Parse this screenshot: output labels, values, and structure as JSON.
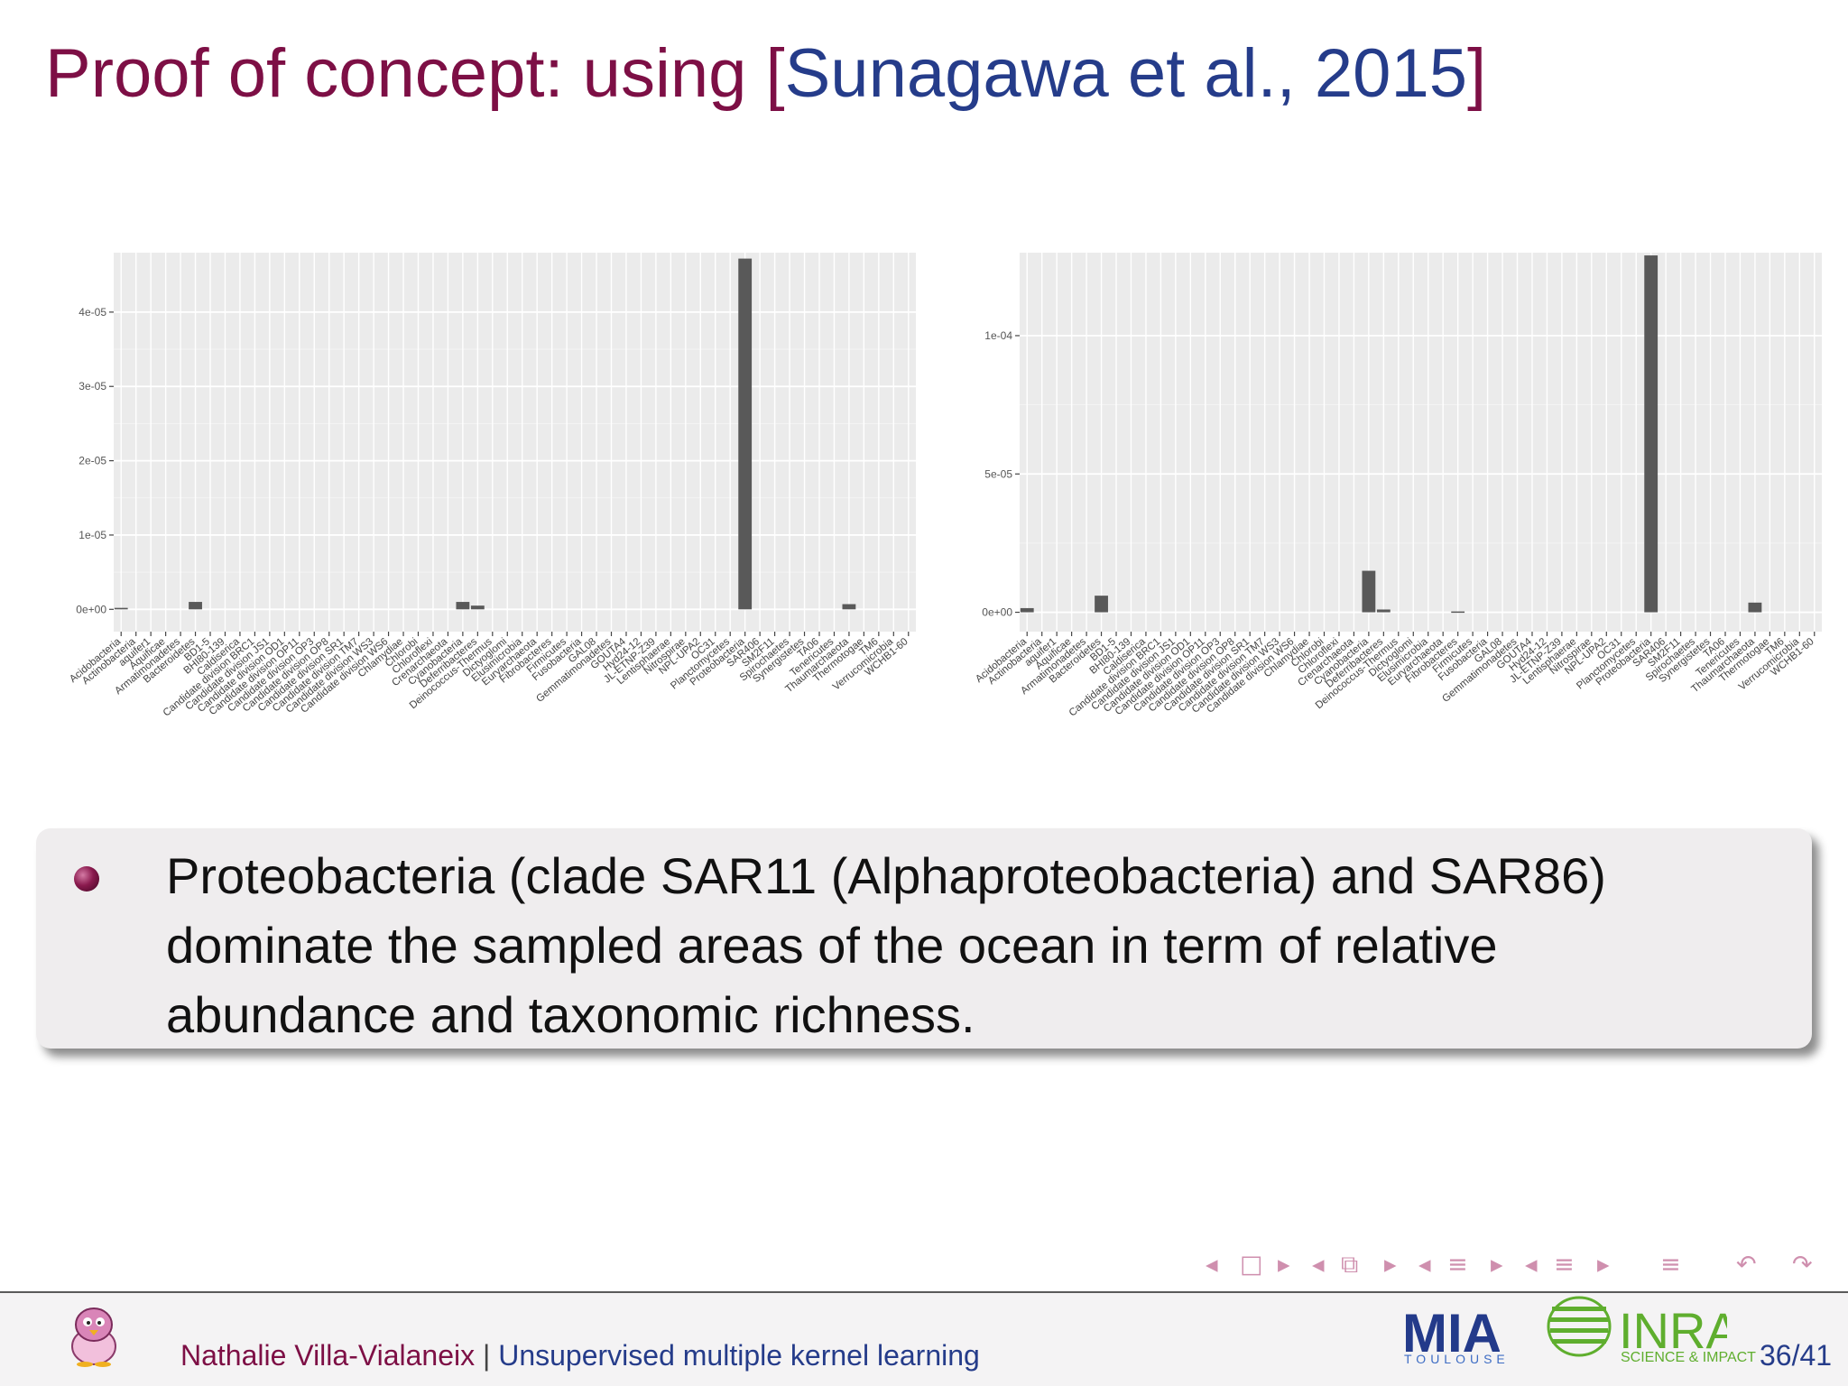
{
  "slide": {
    "title_text": "Proof of concept: using [",
    "title_citation": "Sunagawa et al., 2015",
    "title_close": "]"
  },
  "bullet": {
    "text": "Proteobacteria (clade SAR11 (Alphaproteobacteria) and SAR86) dominate the sampled areas of the ocean in term of relative abundance and taxonomic richness."
  },
  "navigation": {
    "symbols": [
      "◂",
      "□",
      "▸",
      "◂",
      "⧉",
      "▸",
      "◂",
      "≡",
      "▸",
      "◂",
      "≡",
      "▸",
      "≡",
      "↶",
      "↷"
    ]
  },
  "footer": {
    "author": "Nathalie Villa-Vialaneix",
    "separator": " | ",
    "talk_title": "Unsupervised multiple kernel learning",
    "page": "36/41",
    "lab_logo": "MIA",
    "lab_logo_sub": "TOULOUSE",
    "inra_logo": "INRA",
    "inra_sub": "SCIENCE & IMPACT"
  },
  "colors": {
    "title": "#7d0f45",
    "citation": "#253c8a",
    "bar": "#595959",
    "panel": "#ebebeb",
    "grid": "#ffffff"
  },
  "chart_data": [
    {
      "type": "bar",
      "title": "",
      "xlabel": "",
      "ylabel": "",
      "grid": true,
      "ylim": [
        -3e-06,
        4.8e-05
      ],
      "yticks": [
        0,
        1e-05,
        2e-05,
        3e-05,
        4e-05
      ],
      "ytick_labels": [
        "0e+00",
        "1e-05",
        "2e-05",
        "3e-05",
        "4e-05"
      ],
      "categories": [
        "Acidobacteria",
        "Actinobacteria",
        "aquifer1",
        "Aquificae",
        "Armatimonadetes",
        "Bacteroidetes",
        "BD1-5",
        "BHI80-139",
        "Caldiserica",
        "Candidate division BRC1",
        "Candidate division JS1",
        "Candidate division OD1",
        "Candidate division OP11",
        "Candidate division OP3",
        "Candidate division OP8",
        "Candidate division SR1",
        "Candidate division TM7",
        "Candidate division WS3",
        "Candidate division WS6",
        "Chlamydiae",
        "Chlorobi",
        "Chloroflexi",
        "Crenarchaeota",
        "Cyanobacteria",
        "Deferribacteres",
        "Deinococcus-Thermus",
        "Dictyoglomi",
        "Elusimicrobia",
        "Euryarchaeota",
        "Fibrobacteres",
        "Firmicutes",
        "Fusobacteria",
        "GAL08",
        "Gemmatimonadetes",
        "GOUTA4",
        "Hyd24-12",
        "JL-ETNP-Z39",
        "Lentisphaerae",
        "Nitrospirae",
        "NPL-UPA2",
        "OC31",
        "Planctomycetes",
        "Proteobacteria",
        "SAR406",
        "SM2F11",
        "Spirochaetes",
        "Synergistetes",
        "TA06",
        "Tenericutes",
        "Thaumarchaeota",
        "Thermotogae",
        "TM6",
        "Verrucomicrobia",
        "WCHB1-60"
      ],
      "values": [
        2e-07,
        0,
        0,
        0,
        0,
        1e-06,
        0,
        0,
        0,
        0,
        0,
        0,
        0,
        0,
        0,
        0,
        0,
        0,
        0,
        0,
        0,
        0,
        0,
        1e-06,
        5e-07,
        0,
        0,
        0,
        0,
        0,
        0,
        0,
        0,
        0,
        0,
        0,
        0,
        0,
        0,
        0,
        0,
        0,
        4.72e-05,
        0,
        0,
        0,
        0,
        0,
        0,
        7e-07,
        0,
        0,
        0,
        0
      ]
    },
    {
      "type": "bar",
      "title": "",
      "xlabel": "",
      "ylabel": "",
      "grid": true,
      "ylim": [
        -7e-06,
        0.00013
      ],
      "yticks": [
        0,
        5e-05,
        0.0001
      ],
      "ytick_labels": [
        "0e+00",
        "5e-05",
        "1e-04"
      ],
      "categories": [
        "Acidobacteria",
        "Actinobacteria",
        "aquifer1",
        "Aquificae",
        "Armatimonadetes",
        "Bacteroidetes",
        "BD1-5",
        "BHI80-139",
        "Caldiserica",
        "Candidate division BRC1",
        "Candidate division JS1",
        "Candidate division OD1",
        "Candidate division OP11",
        "Candidate division OP3",
        "Candidate division OP8",
        "Candidate division SR1",
        "Candidate division TM7",
        "Candidate division WS3",
        "Candidate division WS6",
        "Chlamydiae",
        "Chlorobi",
        "Chloroflexi",
        "Crenarchaeota",
        "Cyanobacteria",
        "Deferribacteres",
        "Deinococcus-Thermus",
        "Dictyoglomi",
        "Elusimicrobia",
        "Euryarchaeota",
        "Fibrobacteres",
        "Firmicutes",
        "Fusobacteria",
        "GAL08",
        "Gemmatimonadetes",
        "GOUTA4",
        "Hyd24-12",
        "JL-ETNP-Z39",
        "Lentisphaerae",
        "Nitrospirae",
        "NPL-UPA2",
        "OC31",
        "Planctomycetes",
        "Proteobacteria",
        "SAR406",
        "SM2F11",
        "Spirochaetes",
        "Synergistetes",
        "TA06",
        "Tenericutes",
        "Thaumarchaeota",
        "Thermotogae",
        "TM6",
        "Verrucomicrobia",
        "WCHB1-60"
      ],
      "values": [
        1.5e-06,
        0,
        0,
        0,
        0,
        6e-06,
        0,
        0,
        0,
        0,
        0,
        0,
        0,
        0,
        0,
        0,
        0,
        0,
        0,
        0,
        0,
        0,
        0,
        1.5e-05,
        1e-06,
        0,
        0,
        0,
        0,
        3e-07,
        0,
        0,
        0,
        0,
        0,
        0,
        0,
        0,
        0,
        0,
        0,
        0,
        0.000129,
        0,
        0,
        0,
        0,
        0,
        0,
        3.5e-06,
        0,
        0,
        0,
        0
      ]
    }
  ]
}
